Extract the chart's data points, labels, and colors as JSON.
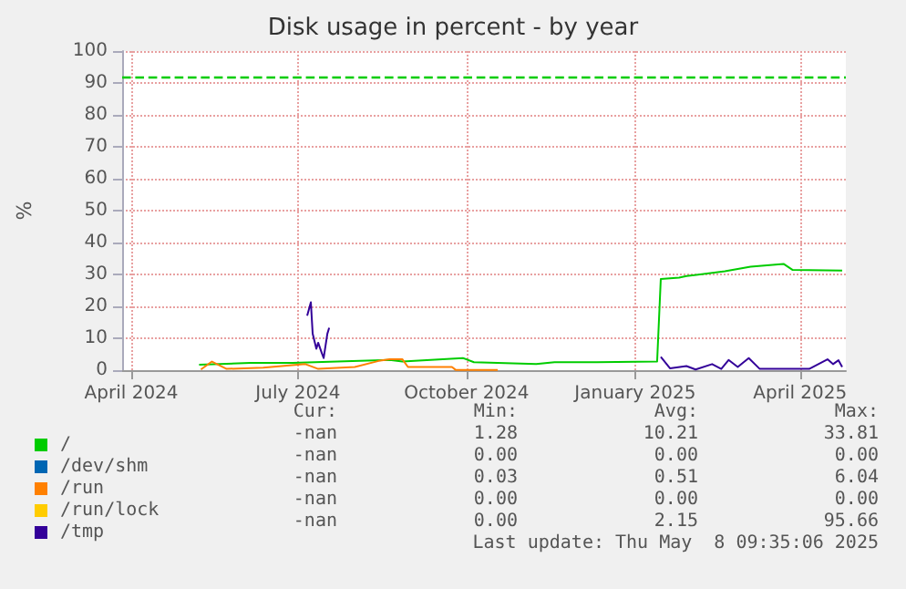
{
  "chart_data": {
    "type": "line",
    "title": "Disk usage in percent - by year",
    "ylabel": "%",
    "xlim": [
      "2024-03-27",
      "2025-04-26"
    ],
    "xticks": [
      {
        "value": "2024-04-01",
        "label": "April 2024"
      },
      {
        "value": "2024-07-01",
        "label": "July 2024"
      },
      {
        "value": "2024-10-01",
        "label": "October 2024"
      },
      {
        "value": "2025-01-01",
        "label": "January 2025"
      },
      {
        "value": "2025-04-01",
        "label": "April 2025"
      }
    ],
    "ylim": [
      0,
      100
    ],
    "yticks": [
      0,
      10,
      20,
      30,
      40,
      50,
      60,
      70,
      80,
      90,
      100
    ],
    "grid": true,
    "legend": "bottom left",
    "ref_lines": [
      {
        "axis": "y",
        "value": 92,
        "color": "#00cc00",
        "line_style": "dashed"
      }
    ],
    "series": [
      {
        "name": "/",
        "color": "#00cc00",
        "x": [
          "2024-05-08",
          "2024-06-05",
          "2024-06-28",
          "2024-08-20",
          "2024-08-27",
          "2024-09-29",
          "2024-10-05",
          "2024-11-08",
          "2024-11-18",
          "2024-12-11",
          "2025-01-13",
          "2025-01-15",
          "2025-01-25",
          "2025-01-29",
          "2025-02-19",
          "2025-03-05",
          "2025-03-23",
          "2025-03-28",
          "2025-04-24"
        ],
        "values": [
          1.7,
          2.3,
          2.3,
          3.2,
          2.7,
          3.8,
          2.5,
          1.9,
          2.5,
          2.5,
          2.7,
          28.6,
          29,
          29.5,
          31,
          32.4,
          33.3,
          31.4,
          31.2
        ]
      },
      {
        "name": "/dev/shm",
        "color": "#0066b3"
      },
      {
        "name": "/run",
        "color": "#ff8000",
        "x": [
          "2024-05-09",
          "2024-05-15",
          "2024-05-23",
          "2024-06-12",
          "2024-07-05",
          "2024-07-12",
          "2024-08-01",
          "2024-08-14",
          "2024-08-20",
          "2024-08-27",
          "2024-08-30",
          "2024-09-23",
          "2024-09-25",
          "2024-10-18"
        ],
        "values": [
          0.2,
          2.7,
          0.4,
          0.8,
          1.9,
          0.4,
          1,
          2.9,
          3.4,
          3.4,
          1,
          1,
          0.1,
          0.1
        ]
      },
      {
        "name": "/run/lock",
        "color": "#ffcc00"
      },
      {
        "name": "/tmp",
        "color": "#330099",
        "x": [
          "2024-07-06",
          "2024-07-08",
          "2024-07-09",
          "2024-07-11",
          "2024-07-12",
          "2024-07-14",
          "2024-07-15",
          "2024-07-17",
          "2024-07-18",
          null,
          "2025-01-15",
          "2025-01-20",
          "2025-01-29",
          "2025-02-03",
          "2025-02-12",
          "2025-02-17",
          "2025-02-21",
          "2025-02-26",
          "2025-03-04",
          "2025-03-10",
          "2025-03-19",
          "2025-04-06",
          "2025-04-16",
          "2025-04-19",
          "2025-04-22",
          "2025-04-24"
        ],
        "values": [
          17.1,
          21.3,
          11.4,
          6.7,
          8.6,
          5.3,
          3.8,
          11.4,
          13.3,
          null,
          4.2,
          0.6,
          1.3,
          0.2,
          1.9,
          0.4,
          3.2,
          1,
          3.8,
          0.4,
          0.4,
          0.4,
          3.4,
          1.9,
          3.1,
          1
        ]
      }
    ],
    "annotations": [
      "Cur:",
      "Min:",
      "Avg:",
      "Max:",
      "-nan",
      "1.28",
      "10.21",
      "33.81",
      "-nan",
      "0.00",
      "0.00",
      "0.00",
      "-nan",
      "0.03",
      "0.51",
      "6.04",
      "-nan",
      "0.00",
      "0.00",
      "0.00",
      "-nan",
      "0.00",
      "2.15",
      "95.66",
      "Last update: Thu May  8 09:35:06 2025"
    ]
  }
}
